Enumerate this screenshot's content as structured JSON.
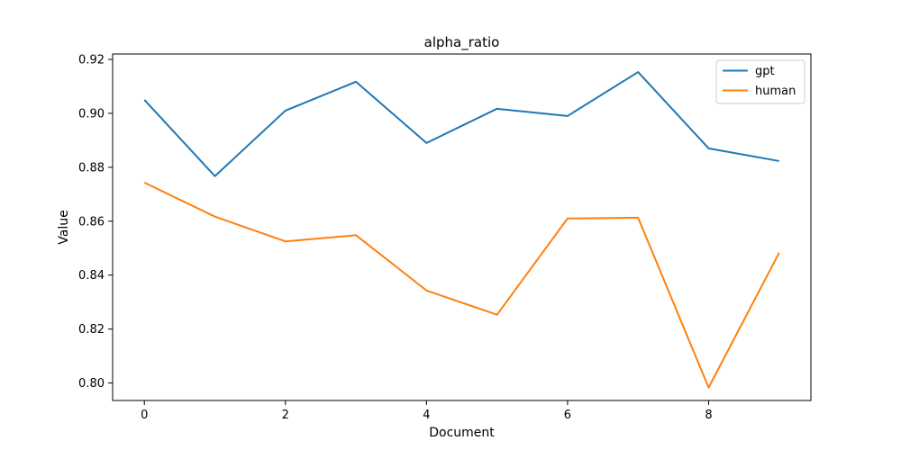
{
  "chart_data": {
    "type": "line",
    "title": "alpha_ratio",
    "xlabel": "Document",
    "ylabel": "Value",
    "x": [
      0,
      1,
      2,
      3,
      4,
      5,
      6,
      7,
      8,
      9
    ],
    "xlim": [
      -0.45,
      9.45
    ],
    "ylim": [
      0.7935,
      0.922
    ],
    "xticks": [
      0,
      2,
      4,
      6,
      8
    ],
    "yticks": [
      0.8,
      0.82,
      0.84,
      0.86,
      0.88,
      0.9,
      0.92
    ],
    "ytick_labels": [
      "0.80",
      "0.82",
      "0.84",
      "0.86",
      "0.88",
      "0.90",
      "0.92"
    ],
    "grid": false,
    "legend_position": "top-right",
    "series": [
      {
        "name": "gpt",
        "color": "#1f77b4",
        "values": [
          0.905,
          0.8767,
          0.901,
          0.9117,
          0.889,
          0.9017,
          0.899,
          0.9153,
          0.887,
          0.8823
        ]
      },
      {
        "name": "human",
        "color": "#ff7f0e",
        "values": [
          0.8743,
          0.8617,
          0.8525,
          0.8548,
          0.8343,
          0.8253,
          0.861,
          0.8613,
          0.7983,
          0.8483
        ]
      }
    ]
  }
}
